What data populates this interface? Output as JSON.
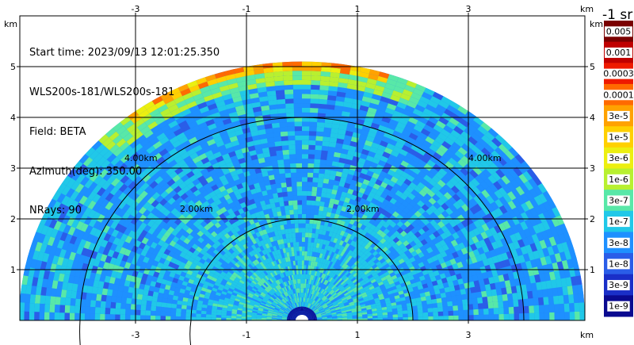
{
  "info": {
    "start_time": "Start time: 2023/09/13 12:01:25.350",
    "instrument": "WLS200s-181/WLS200s-181",
    "field": "Field: BETA",
    "azimuth": "Azimuth(deg): 350.00",
    "nrays": "NRays: 90"
  },
  "colorbar": {
    "unit_label": "-1 sr",
    "labels": [
      "0.005",
      "0.001",
      "0.0003",
      "0.0001",
      "3e-5",
      "1e-5",
      "3e-6",
      "1e-6",
      "3e-7",
      "1e-7",
      "3e-8",
      "1e-8",
      "3e-9",
      "1e-9"
    ],
    "colors": [
      "#7a0000",
      "#c00000",
      "#ee1a00",
      "#ff6a00",
      "#ffa200",
      "#ffd000",
      "#ecef10",
      "#b8f030",
      "#58e8a8",
      "#20c8e8",
      "#1e90ff",
      "#2a5de8",
      "#1a2fc8",
      "#0a0a90"
    ]
  },
  "chart_data": {
    "type": "heatmap",
    "title": "",
    "xlabel": "km",
    "ylabel": "km",
    "xlim": [
      -5.4,
      5.4
    ],
    "ylim": [
      0,
      5.9
    ],
    "x_ticks": [
      -3,
      -1,
      1,
      3
    ],
    "y_ticks": [
      1,
      2,
      3,
      4,
      5
    ],
    "max_range_km": 5.1,
    "range_rings": [
      {
        "radius_km": 2.0,
        "label": "2.00km"
      },
      {
        "radius_km": 4.0,
        "label": "4.00km"
      }
    ],
    "ring_label_positions_km": [
      [
        -2.2,
        2.2
      ],
      [
        0.8,
        2.2
      ],
      [
        -3.2,
        3.2
      ],
      [
        3.0,
        3.2
      ]
    ],
    "axis_unit_label": "km",
    "field": "BETA",
    "colorscale_min": 1e-09,
    "colorscale_max": 0.005,
    "grid": true
  }
}
